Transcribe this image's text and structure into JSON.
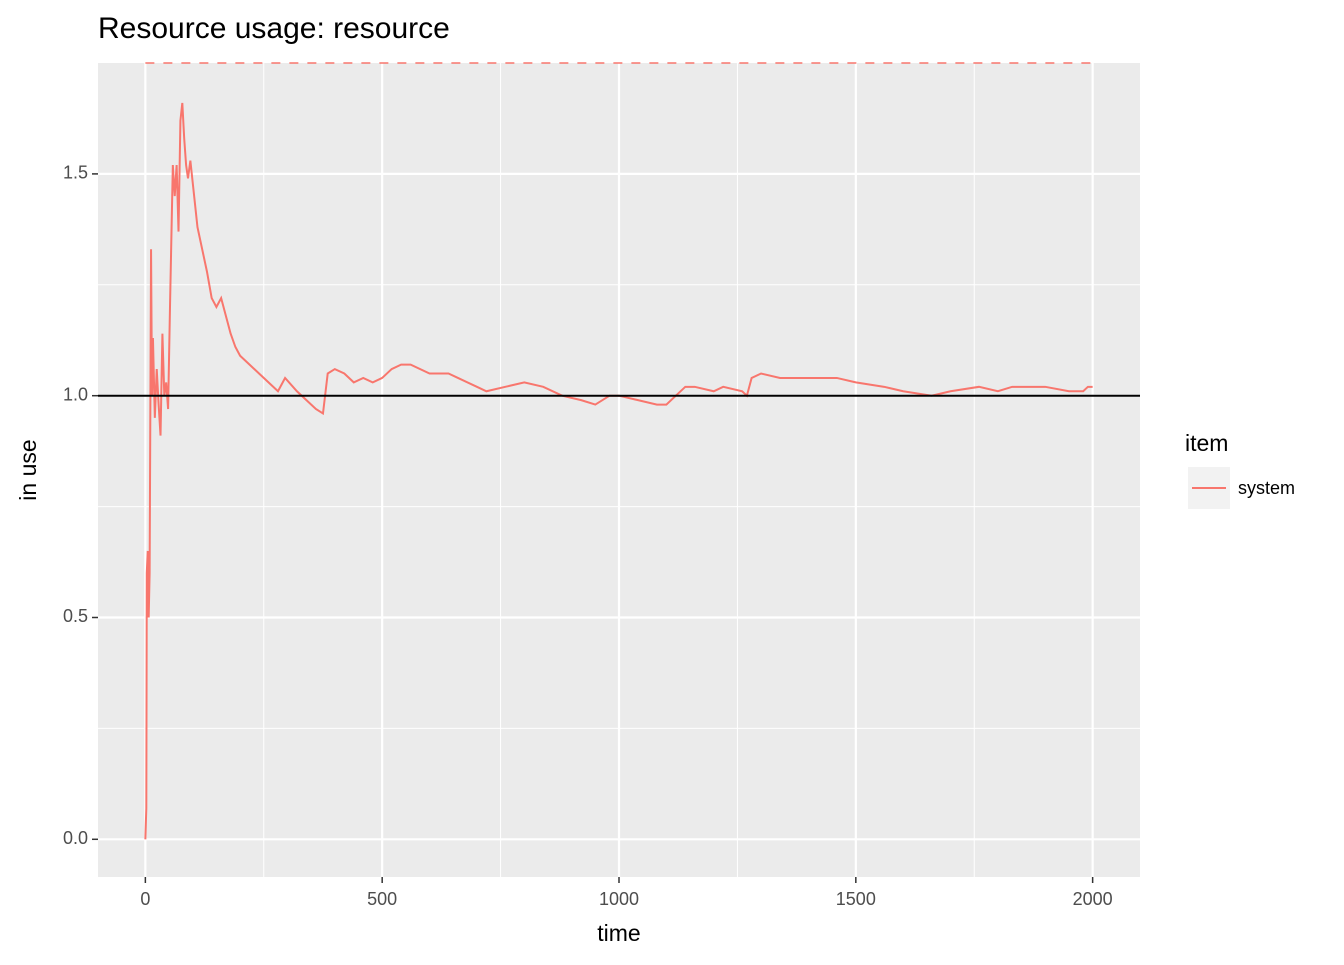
{
  "chart_data": {
    "type": "line",
    "title": "Resource usage: resource",
    "x_label": "time",
    "y_label": "in use",
    "legend_title": "item",
    "series": [
      {
        "name": "system",
        "color": "#F8766D",
        "x": [
          0,
          2,
          3,
          5,
          7,
          9,
          12,
          14,
          16,
          20,
          24,
          28,
          32,
          36,
          40,
          44,
          48,
          52,
          58,
          62,
          66,
          70,
          74,
          78,
          82,
          86,
          90,
          95,
          100,
          110,
          120,
          130,
          140,
          150,
          160,
          170,
          180,
          190,
          200,
          220,
          240,
          260,
          280,
          295,
          320,
          340,
          360,
          375,
          385,
          400,
          420,
          440,
          460,
          480,
          500,
          520,
          540,
          560,
          600,
          640,
          660,
          700,
          720,
          760,
          800,
          840,
          880,
          920,
          950,
          980,
          1000,
          1040,
          1080,
          1100,
          1120,
          1140,
          1160,
          1200,
          1220,
          1260,
          1270,
          1280,
          1300,
          1340,
          1400,
          1460,
          1500,
          1560,
          1600,
          1660,
          1700,
          1760,
          1800,
          1830,
          1900,
          1950,
          1980,
          1990,
          2000
        ],
        "values": [
          0,
          0.07,
          0.6,
          0.65,
          0.5,
          0.6,
          1.33,
          1.0,
          1.13,
          0.95,
          1.06,
          0.98,
          0.91,
          1.14,
          1.0,
          1.03,
          0.97,
          1.2,
          1.52,
          1.45,
          1.52,
          1.37,
          1.62,
          1.66,
          1.58,
          1.52,
          1.49,
          1.53,
          1.48,
          1.38,
          1.33,
          1.28,
          1.22,
          1.2,
          1.22,
          1.18,
          1.14,
          1.11,
          1.09,
          1.07,
          1.05,
          1.03,
          1.01,
          1.04,
          1.01,
          0.99,
          0.97,
          0.96,
          1.05,
          1.06,
          1.05,
          1.03,
          1.04,
          1.03,
          1.04,
          1.06,
          1.07,
          1.07,
          1.05,
          1.05,
          1.04,
          1.02,
          1.01,
          1.02,
          1.03,
          1.02,
          1.0,
          0.99,
          0.98,
          1.0,
          1.0,
          0.99,
          0.98,
          0.98,
          1.0,
          1.02,
          1.02,
          1.01,
          1.02,
          1.01,
          1.0,
          1.04,
          1.05,
          1.04,
          1.04,
          1.04,
          1.03,
          1.02,
          1.01,
          1.0,
          1.01,
          1.02,
          1.01,
          1.02,
          1.02,
          1.01,
          1.01,
          1.02,
          1.02
        ]
      }
    ],
    "reference_lines": [
      {
        "value": 1,
        "color": "#000000",
        "dashed": false
      },
      {
        "value": 1.75,
        "color": "#F8766D",
        "dashed": true
      }
    ],
    "xlim": [
      -100,
      2100
    ],
    "ylim": [
      -0.085,
      1.75
    ],
    "xticks": [
      0,
      500,
      1000,
      1500,
      2000
    ],
    "yticks": [
      {
        "value": 0,
        "label": "0.0"
      },
      {
        "value": 0.5,
        "label": "0.5"
      },
      {
        "value": 1,
        "label": "1.0"
      },
      {
        "value": 1.5,
        "label": "1.5"
      }
    ],
    "grid": true,
    "minor_grid": true
  }
}
